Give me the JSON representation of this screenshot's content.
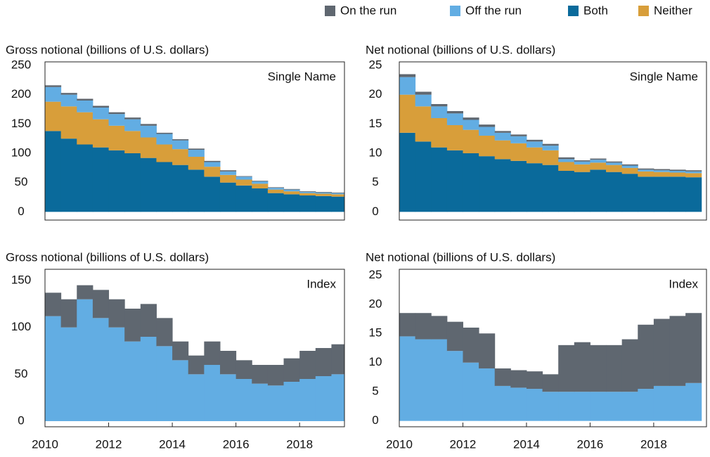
{
  "legend": [
    {
      "name": "On the run",
      "color": "#5f6770"
    },
    {
      "name": "Off the run",
      "color": "#62ade3"
    },
    {
      "name": "Both",
      "color": "#0a6a9b"
    },
    {
      "name": "Neither",
      "color": "#d89e3a"
    }
  ],
  "chart_data": [
    {
      "type": "bar",
      "ylabel": "Gross notional (billions of U.S. dollars)",
      "title": "Single Name",
      "x": [
        2010,
        2010.5,
        2011,
        2011.5,
        2012,
        2012.5,
        2013,
        2013.5,
        2014,
        2014.5,
        2015,
        2015.5,
        2016,
        2016.5,
        2017,
        2017.5,
        2018,
        2018.5,
        2019
      ],
      "series": [
        {
          "color": "#0a6a9b",
          "values": [
            138,
            125,
            115,
            110,
            105,
            100,
            92,
            85,
            80,
            72,
            60,
            50,
            45,
            40,
            32,
            30,
            28,
            27,
            26
          ]
        },
        {
          "color": "#d89e3a",
          "values": [
            50,
            55,
            55,
            48,
            42,
            38,
            35,
            30,
            27,
            22,
            17,
            13,
            10,
            8,
            6,
            5,
            4,
            4,
            4
          ]
        },
        {
          "color": "#62ade3",
          "values": [
            25,
            20,
            20,
            20,
            20,
            20,
            20,
            18,
            15,
            12,
            8,
            6,
            5,
            4,
            3,
            3,
            2,
            2,
            2
          ]
        },
        {
          "color": "#5f6770",
          "values": [
            3,
            3,
            3,
            3,
            3,
            3,
            3,
            2,
            2,
            2,
            2,
            2,
            1,
            1,
            1,
            1,
            1,
            1,
            1
          ]
        }
      ],
      "xlim": [
        2010,
        2019.41
      ],
      "ylim": [
        -14,
        256
      ],
      "yticks": [
        0,
        50,
        100,
        150,
        200,
        250
      ]
    },
    {
      "type": "bar",
      "ylabel": "Net notional (billions of U.S. dollars)",
      "title": "Single Name",
      "x": [
        2010,
        2010.5,
        2011,
        2011.5,
        2012,
        2012.5,
        2013,
        2013.5,
        2014,
        2014.5,
        2015,
        2015.5,
        2016,
        2016.5,
        2017,
        2017.5,
        2018,
        2018.5,
        2019
      ],
      "series": [
        {
          "color": "#0a6a9b",
          "values": [
            13.5,
            12,
            11,
            10.5,
            10,
            9.5,
            9,
            8.7,
            8.3,
            8,
            7,
            6.8,
            7.2,
            6.8,
            6.5,
            6,
            6,
            6,
            5.9
          ]
        },
        {
          "color": "#d89e3a",
          "values": [
            6.5,
            6,
            5,
            4.3,
            4,
            3.5,
            3.2,
            3,
            2.7,
            2.5,
            1.5,
            1.3,
            1.2,
            1.2,
            1.0,
            0.9,
            0.8,
            0.7,
            0.7
          ]
        },
        {
          "color": "#62ade3",
          "values": [
            3,
            2,
            2,
            2,
            1.7,
            1.5,
            1.3,
            1.2,
            1.0,
            0.8,
            0.5,
            0.5,
            0.5,
            0.4,
            0.4,
            0.3,
            0.3,
            0.3,
            0.3
          ]
        },
        {
          "color": "#5f6770",
          "values": [
            0.5,
            0.5,
            0.4,
            0.4,
            0.4,
            0.4,
            0.3,
            0.3,
            0.3,
            0.3,
            0.3,
            0.2,
            0.2,
            0.2,
            0.2,
            0.2,
            0.2,
            0.2,
            0.2
          ]
        }
      ],
      "xlim": [
        2010,
        2019.66
      ],
      "ylim": [
        -1.4,
        25.6
      ],
      "yticks": [
        0,
        5,
        10,
        15,
        20,
        25
      ]
    },
    {
      "type": "bar",
      "ylabel": "Gross notional (billions of U.S. dollars)",
      "title": "Index",
      "x": [
        2010,
        2010.5,
        2011,
        2011.5,
        2012,
        2012.5,
        2013,
        2013.5,
        2014,
        2014.5,
        2015,
        2015.5,
        2016,
        2016.5,
        2017,
        2017.5,
        2018,
        2018.5,
        2019
      ],
      "series": [
        {
          "color": "#62ade3",
          "values": [
            112,
            100,
            130,
            110,
            100,
            85,
            90,
            80,
            65,
            50,
            60,
            50,
            45,
            40,
            38,
            42,
            45,
            48,
            50
          ]
        },
        {
          "color": "#5f6770",
          "values": [
            25,
            30,
            15,
            30,
            30,
            35,
            35,
            30,
            20,
            20,
            25,
            25,
            20,
            20,
            22,
            25,
            30,
            30,
            32
          ]
        }
      ],
      "xlim": [
        2010,
        2019.41
      ],
      "ylim": [
        -6,
        162
      ],
      "yticks": [
        0,
        50,
        100,
        150
      ],
      "xticks": [
        2010,
        2012,
        2014,
        2016,
        2018
      ]
    },
    {
      "type": "bar",
      "ylabel": "Net notional (billions of U.S. dollars)",
      "title": "Index",
      "x": [
        2010,
        2010.5,
        2011,
        2011.5,
        2012,
        2012.5,
        2013,
        2013.5,
        2014,
        2014.5,
        2015,
        2015.5,
        2016,
        2016.5,
        2017,
        2017.5,
        2018,
        2018.5,
        2019
      ],
      "series": [
        {
          "color": "#62ade3",
          "values": [
            14.5,
            14,
            14,
            12,
            10,
            9,
            6,
            5.7,
            5.5,
            5,
            5,
            5,
            5,
            5,
            5,
            5.5,
            6,
            6,
            6.5
          ]
        },
        {
          "color": "#5f6770",
          "values": [
            4,
            4.5,
            4,
            5,
            6,
            6,
            3,
            3,
            3,
            3,
            8,
            8.5,
            8,
            8,
            9,
            11,
            11.5,
            12,
            12
          ]
        }
      ],
      "xlim": [
        2010,
        2019.66
      ],
      "ylim": [
        -1,
        26
      ],
      "yticks": [
        0,
        5,
        10,
        15,
        20,
        25
      ],
      "xticks": [
        2010,
        2012,
        2014,
        2016,
        2018
      ]
    }
  ]
}
